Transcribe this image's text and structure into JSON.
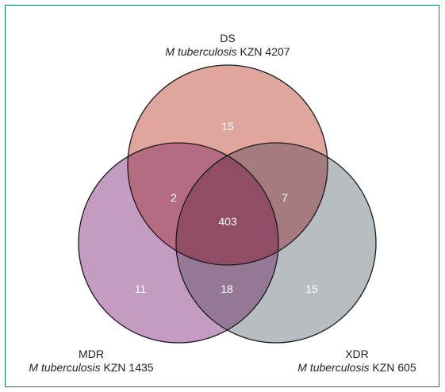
{
  "diagram": {
    "type": "venn-3",
    "sets": [
      {
        "key": "ds",
        "name": "DS",
        "organism": "M tuberculosis",
        "strain": "KZN 4207",
        "color": "#e0a59d"
      },
      {
        "key": "mdr",
        "name": "MDR",
        "organism": "M tuberculosis",
        "strain": "KZN 1435",
        "color": "#c49bc2"
      },
      {
        "key": "xdr",
        "name": "XDR",
        "organism": "M tuberculosis",
        "strain": "KZN 605",
        "color": "#b8bdc2"
      }
    ],
    "regions": {
      "ds_only": "15",
      "mdr_only": "11",
      "xdr_only": "15",
      "ds_mdr": "2",
      "ds_xdr": "7",
      "mdr_xdr": "18",
      "all": "403"
    },
    "colors": {
      "ds_mdr": "#b56b80",
      "ds_xdr": "#a47b7f",
      "mdr_xdr": "#957896",
      "all": "#8f4e66",
      "outline": "#1a1a1a",
      "frame": "#1a7a5a"
    }
  }
}
